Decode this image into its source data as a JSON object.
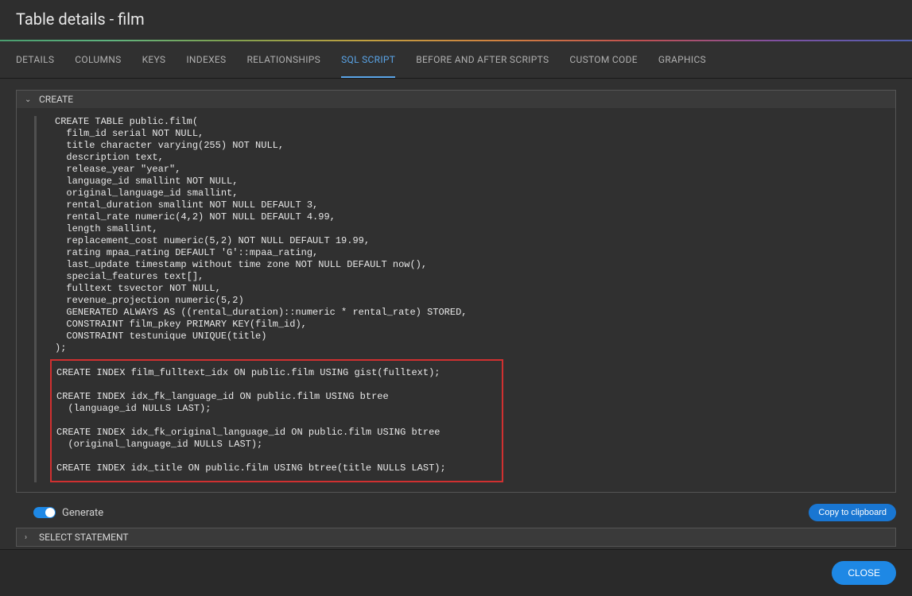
{
  "header": {
    "title": "Table details - film"
  },
  "tabs": {
    "details": "DETAILS",
    "columns": "COLUMNS",
    "keys": "KEYS",
    "indexes": "INDEXES",
    "relationships": "RELATIONSHIPS",
    "sql_script": "SQL SCRIPT",
    "before_after": "BEFORE AND AFTER SCRIPTS",
    "custom_code": "CUSTOM CODE",
    "graphics": "GRAPHICS"
  },
  "sections": {
    "create": {
      "label": "CREATE",
      "sql_main": "CREATE TABLE public.film(\n  film_id serial NOT NULL,\n  title character varying(255) NOT NULL,\n  description text,\n  release_year \"year\",\n  language_id smallint NOT NULL,\n  original_language_id smallint,\n  rental_duration smallint NOT NULL DEFAULT 3,\n  rental_rate numeric(4,2) NOT NULL DEFAULT 4.99,\n  length smallint,\n  replacement_cost numeric(5,2) NOT NULL DEFAULT 19.99,\n  rating mpaa_rating DEFAULT 'G'::mpaa_rating,\n  last_update timestamp without time zone NOT NULL DEFAULT now(),\n  special_features text[],\n  fulltext tsvector NOT NULL,\n  revenue_projection numeric(5,2)\n  GENERATED ALWAYS AS ((rental_duration)::numeric * rental_rate) STORED,\n  CONSTRAINT film_pkey PRIMARY KEY(film_id),\n  CONSTRAINT testunique UNIQUE(title)\n);",
      "sql_indexes": "CREATE INDEX film_fulltext_idx ON public.film USING gist(fulltext);\n\nCREATE INDEX idx_fk_language_id ON public.film USING btree\n  (language_id NULLS LAST);\n\nCREATE INDEX idx_fk_original_language_id ON public.film USING btree\n  (original_language_id NULLS LAST);\n\nCREATE INDEX idx_title ON public.film USING btree(title NULLS LAST);"
    },
    "select": {
      "label": "SELECT STATEMENT"
    }
  },
  "controls": {
    "generate_label": "Generate",
    "copy_label": "Copy to clipboard"
  },
  "footer": {
    "close_label": "CLOSE"
  },
  "colors": {
    "bg": "#2e2e2e",
    "panel": "#303030",
    "accent": "#1e88e5",
    "tab_active": "#5aa5e8",
    "highlight_border": "#d03030"
  }
}
